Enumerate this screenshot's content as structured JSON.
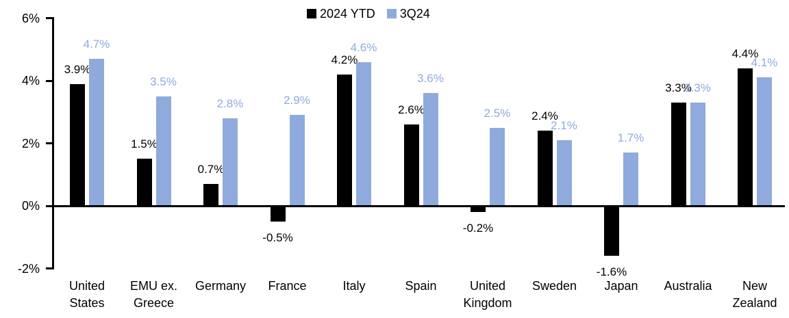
{
  "chart_data": {
    "type": "bar",
    "title": "",
    "categories": [
      "United States",
      "EMU ex. Greece",
      "Germany",
      "France",
      "Italy",
      "Spain",
      "United Kingdom",
      "Sweden",
      "Japan",
      "Australia",
      "New Zealand"
    ],
    "category_label_lines": [
      [
        "United",
        "States"
      ],
      [
        "EMU ex.",
        "Greece"
      ],
      [
        "Germany"
      ],
      [
        "France"
      ],
      [
        "Italy"
      ],
      [
        "Spain"
      ],
      [
        "United",
        "Kingdom"
      ],
      [
        "Sweden"
      ],
      [
        "Japan"
      ],
      [
        "Australia"
      ],
      [
        "New",
        "Zealand"
      ]
    ],
    "series": [
      {
        "name": "2024 YTD",
        "color": "#000000",
        "label_color": "#000000",
        "values": [
          3.9,
          1.5,
          0.7,
          -0.5,
          4.2,
          2.6,
          -0.2,
          2.4,
          -1.6,
          3.3,
          4.4
        ],
        "labels": [
          "3.9%",
          "1.5%",
          "0.7%",
          "-0.5%",
          "4.2%",
          "2.6%",
          "-0.2%",
          "2.4%",
          "-1.6%",
          "3.3%",
          "4.4%"
        ]
      },
      {
        "name": "3Q24",
        "color": "#8FAADC",
        "label_color": "#8FAADC",
        "values": [
          4.7,
          3.5,
          2.8,
          2.9,
          4.6,
          3.6,
          2.5,
          2.1,
          1.7,
          3.3,
          4.1
        ],
        "labels": [
          "4.7%",
          "3.5%",
          "2.8%",
          "2.9%",
          "4.6%",
          "3.6%",
          "2.5%",
          "2.1%",
          "1.7%",
          "3.3%",
          "4.1%"
        ]
      }
    ],
    "y_axis": {
      "min": -2,
      "max": 6,
      "tick_values": [
        6,
        4,
        2,
        0,
        -2
      ],
      "tick_labels": [
        "6%",
        "4%",
        "2%",
        "0%",
        "-2%"
      ]
    },
    "value_suffix": "%",
    "legend_position": "top-center",
    "grid": false,
    "colors": {
      "axis": "#000000",
      "background": "#FFFFFF"
    }
  }
}
